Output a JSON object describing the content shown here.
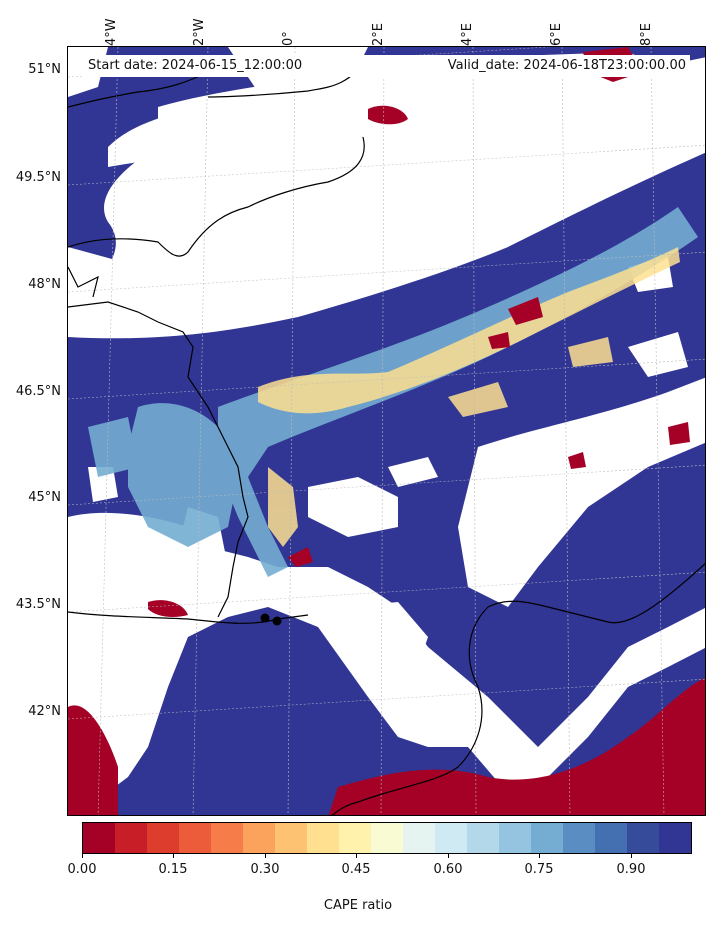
{
  "map": {
    "start_date": "Start date: 2024-06-15_12:00:00",
    "valid_date": "Valid_date: 2024-06-18T23:00:00.00",
    "lon_labels": [
      "4°W",
      "2°W",
      "0°",
      "2°E",
      "4°E",
      "6°E",
      "8°E"
    ],
    "lat_labels": [
      "51°N",
      "49.5°N",
      "48°N",
      "46.5°N",
      "45°N",
      "43.5°N",
      "42°N"
    ],
    "colors": {
      "ratio_high": "#313695",
      "ratio_mid": "#74add1",
      "ratio_neutral": "#ffffbf",
      "ratio_low": "#a50026",
      "coastline": "#000000",
      "gridline": "#bbbbbb"
    },
    "markers": "two black station dots"
  },
  "colorbar": {
    "label": "CAPE ratio",
    "ticks": [
      "0.00",
      "0.15",
      "0.30",
      "0.45",
      "0.60",
      "0.75",
      "0.90"
    ],
    "colors": [
      "#a50026",
      "#c81e27",
      "#dd3d2d",
      "#ec5c3b",
      "#f67c4a",
      "#fba35c",
      "#fdc373",
      "#fee090",
      "#fff2ac",
      "#f9fcd3",
      "#e6f4f1",
      "#d0eaf3",
      "#b2d8e9",
      "#94c4df",
      "#74add1",
      "#5a8ec3",
      "#4470b1",
      "#364b9a",
      "#313695"
    ]
  }
}
